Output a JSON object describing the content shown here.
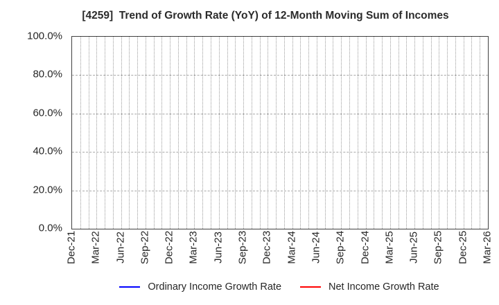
{
  "chart_data": {
    "type": "line",
    "title": "[4259]  Trend of Growth Rate (YoY) of 12-Month Moving Sum of Incomes",
    "x_tick_labels": [
      "Dec-21",
      "Mar-22",
      "Jun-22",
      "Sep-22",
      "Dec-22",
      "Mar-23",
      "Jun-23",
      "Sep-23",
      "Dec-23",
      "Mar-24",
      "Jun-24",
      "Sep-24",
      "Dec-24",
      "Mar-25",
      "Jun-25",
      "Sep-25",
      "Dec-25",
      "Mar-26"
    ],
    "months_per_tick": 3,
    "x_minor_gridline_interval": "monthly",
    "ylim": [
      0,
      100
    ],
    "y_ticks": [
      {
        "value": 0,
        "label": "0.0%"
      },
      {
        "value": 20,
        "label": "20.0%"
      },
      {
        "value": 40,
        "label": "40.0%"
      },
      {
        "value": 60,
        "label": "60.0%"
      },
      {
        "value": 80,
        "label": "80.0%"
      },
      {
        "value": 100,
        "label": "100.0%"
      }
    ],
    "grid": true,
    "legend_position": "bottom-center",
    "series": [
      {
        "name": "Ordinary Income Growth Rate",
        "color": "#0000ff",
        "values": []
      },
      {
        "name": "Net Income Growth Rate",
        "color": "#ff0000",
        "values": []
      }
    ]
  }
}
